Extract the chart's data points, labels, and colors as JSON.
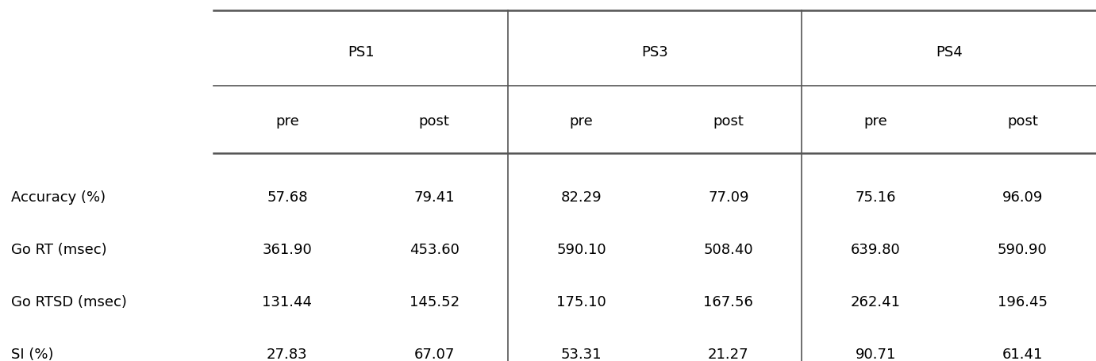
{
  "row_labels": [
    "Accuracy (%)",
    "Go RT (msec)",
    "Go RTSD (msec)",
    "SI (%)"
  ],
  "col_groups": [
    "PS1",
    "PS3",
    "PS4"
  ],
  "col_subheaders": [
    "pre",
    "post",
    "pre",
    "post",
    "pre",
    "post"
  ],
  "data": [
    [
      "57.68",
      "79.41",
      "82.29",
      "77.09",
      "75.16",
      "96.09"
    ],
    [
      "361.90",
      "453.60",
      "590.10",
      "508.40",
      "639.80",
      "590.90"
    ],
    [
      "131.44",
      "145.52",
      "175.10",
      "167.56",
      "262.41",
      "196.45"
    ],
    [
      "27.83",
      "67.07",
      "53.31",
      "21.27",
      "90.71",
      "61.41"
    ]
  ],
  "background_color": "#ffffff",
  "text_color": "#000000",
  "line_color": "#555555",
  "font_size": 13,
  "header_font_size": 13,
  "row_label_font_size": 13,
  "figsize": [
    13.81,
    4.56
  ],
  "dpi": 100
}
